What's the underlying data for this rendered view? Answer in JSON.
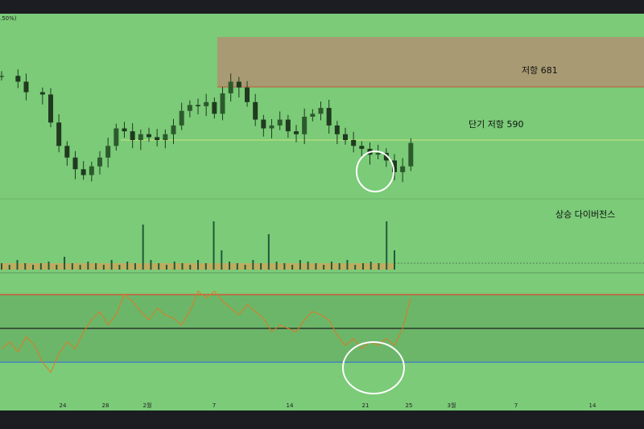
{
  "corner_label": ".50%)",
  "annotations": {
    "resistance": "저항 681",
    "short_resistance": "단기 저항 590",
    "divergence": "상승 다이버전스"
  },
  "colors": {
    "background": "#7bcb78",
    "frame": "#1b1d22",
    "resistance_zone": "#a89a72",
    "resistance_line": "#c05a3a",
    "short_resistance_line": "#cfe67a",
    "candles": "#1f3a1f",
    "volume_ma": "#c9a85a",
    "rsi_line": "#e07a20",
    "rsi_upper": "#e0452e",
    "rsi_mid": "#1e1e1e",
    "rsi_lower": "#3a78d0",
    "rsi_band": "#6cb66a",
    "highlight_circle": "#ffffff"
  },
  "chart_data": {
    "type": "candlestick",
    "x_ticks": [
      "24",
      "28",
      "2월",
      "7",
      "14",
      "21",
      "25",
      "3월",
      "7",
      "14"
    ],
    "resistance_levels": [
      681,
      590
    ],
    "price_series": [
      {
        "x": 0,
        "y": 700
      },
      {
        "x": 2,
        "y": 690
      },
      {
        "x": 3,
        "y": 672
      },
      {
        "x": 5,
        "y": 668
      },
      {
        "x": 6,
        "y": 620
      },
      {
        "x": 7,
        "y": 580
      },
      {
        "x": 8,
        "y": 560
      },
      {
        "x": 9,
        "y": 540
      },
      {
        "x": 10,
        "y": 530
      },
      {
        "x": 11,
        "y": 545
      },
      {
        "x": 12,
        "y": 560
      },
      {
        "x": 13,
        "y": 580
      },
      {
        "x": 14,
        "y": 610
      },
      {
        "x": 15,
        "y": 605
      },
      {
        "x": 16,
        "y": 590
      },
      {
        "x": 17,
        "y": 600
      },
      {
        "x": 18,
        "y": 595
      },
      {
        "x": 19,
        "y": 590
      },
      {
        "x": 20,
        "y": 600
      },
      {
        "x": 21,
        "y": 615
      },
      {
        "x": 22,
        "y": 640
      },
      {
        "x": 23,
        "y": 650
      },
      {
        "x": 24,
        "y": 648
      },
      {
        "x": 25,
        "y": 655
      },
      {
        "x": 26,
        "y": 635
      },
      {
        "x": 27,
        "y": 670
      },
      {
        "x": 28,
        "y": 690
      },
      {
        "x": 29,
        "y": 680
      },
      {
        "x": 30,
        "y": 655
      },
      {
        "x": 31,
        "y": 625
      },
      {
        "x": 32,
        "y": 610
      },
      {
        "x": 33,
        "y": 615
      },
      {
        "x": 34,
        "y": 625
      },
      {
        "x": 35,
        "y": 605
      },
      {
        "x": 36,
        "y": 600
      },
      {
        "x": 37,
        "y": 630
      },
      {
        "x": 38,
        "y": 635
      },
      {
        "x": 39,
        "y": 645
      },
      {
        "x": 40,
        "y": 615
      },
      {
        "x": 41,
        "y": 600
      },
      {
        "x": 42,
        "y": 590
      },
      {
        "x": 43,
        "y": 580
      },
      {
        "x": 44,
        "y": 575
      },
      {
        "x": 45,
        "y": 565
      },
      {
        "x": 46,
        "y": 568
      },
      {
        "x": 47,
        "y": 555
      },
      {
        "x": 48,
        "y": 535
      },
      {
        "x": 49,
        "y": 545
      },
      {
        "x": 50,
        "y": 585
      }
    ],
    "rsi_series": [
      {
        "x": 0,
        "y": 38
      },
      {
        "x": 1,
        "y": 42
      },
      {
        "x": 2,
        "y": 36
      },
      {
        "x": 3,
        "y": 45
      },
      {
        "x": 4,
        "y": 40
      },
      {
        "x": 5,
        "y": 30
      },
      {
        "x": 6,
        "y": 24
      },
      {
        "x": 7,
        "y": 35
      },
      {
        "x": 8,
        "y": 42
      },
      {
        "x": 9,
        "y": 38
      },
      {
        "x": 10,
        "y": 48
      },
      {
        "x": 11,
        "y": 55
      },
      {
        "x": 12,
        "y": 60
      },
      {
        "x": 13,
        "y": 52
      },
      {
        "x": 14,
        "y": 58
      },
      {
        "x": 15,
        "y": 70
      },
      {
        "x": 16,
        "y": 66
      },
      {
        "x": 17,
        "y": 60
      },
      {
        "x": 18,
        "y": 55
      },
      {
        "x": 19,
        "y": 62
      },
      {
        "x": 20,
        "y": 58
      },
      {
        "x": 21,
        "y": 56
      },
      {
        "x": 22,
        "y": 52
      },
      {
        "x": 23,
        "y": 60
      },
      {
        "x": 24,
        "y": 72
      },
      {
        "x": 25,
        "y": 68
      },
      {
        "x": 26,
        "y": 72
      },
      {
        "x": 27,
        "y": 66
      },
      {
        "x": 28,
        "y": 62
      },
      {
        "x": 29,
        "y": 58
      },
      {
        "x": 30,
        "y": 64
      },
      {
        "x": 31,
        "y": 60
      },
      {
        "x": 32,
        "y": 56
      },
      {
        "x": 33,
        "y": 48
      },
      {
        "x": 34,
        "y": 52
      },
      {
        "x": 35,
        "y": 50
      },
      {
        "x": 36,
        "y": 48
      },
      {
        "x": 37,
        "y": 55
      },
      {
        "x": 38,
        "y": 60
      },
      {
        "x": 39,
        "y": 58
      },
      {
        "x": 40,
        "y": 55
      },
      {
        "x": 41,
        "y": 46
      },
      {
        "x": 42,
        "y": 40
      },
      {
        "x": 43,
        "y": 44
      },
      {
        "x": 44,
        "y": 38
      },
      {
        "x": 45,
        "y": 42
      },
      {
        "x": 46,
        "y": 40
      },
      {
        "x": 47,
        "y": 44
      },
      {
        "x": 48,
        "y": 40
      },
      {
        "x": 49,
        "y": 50
      },
      {
        "x": 50,
        "y": 68
      }
    ],
    "volume_series": [
      4,
      3,
      6,
      4,
      3,
      4,
      5,
      3,
      8,
      4,
      3,
      5,
      4,
      3,
      6,
      3,
      5,
      4,
      28,
      6,
      4,
      3,
      5,
      4,
      3,
      6,
      4,
      30,
      12,
      5,
      4,
      3,
      6,
      4,
      22,
      5,
      4,
      3,
      6,
      5,
      4,
      3,
      5,
      4,
      6,
      3,
      4,
      5,
      4,
      30,
      12
    ]
  }
}
